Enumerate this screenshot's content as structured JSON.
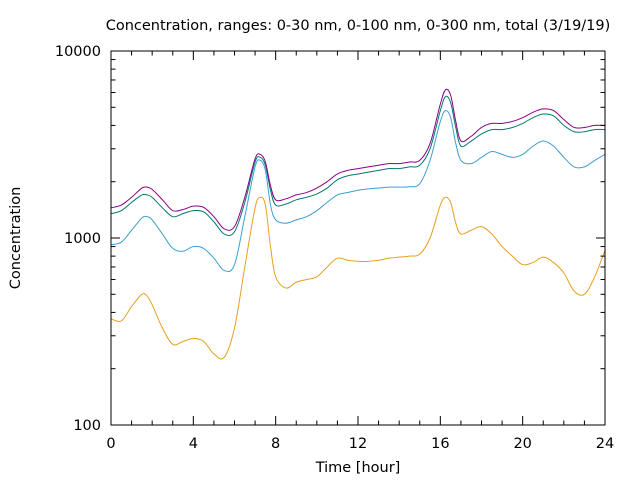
{
  "chart_data": {
    "type": "line",
    "title": "Concentration, ranges: 0-30 nm, 0-100 nm, 0-300 nm, total (3/19/19)",
    "xlabel": "Time [hour]",
    "ylabel": "Concentration",
    "xlim": [
      0,
      24
    ],
    "ylim": [
      100,
      10000
    ],
    "yscale": "log",
    "grid": false,
    "x_ticks": [
      0,
      4,
      8,
      12,
      16,
      20,
      24
    ],
    "x_tick_labels": [
      "0",
      "4",
      "8",
      "12",
      "16",
      "20",
      "24"
    ],
    "y_ticks": [
      100,
      1000,
      10000
    ],
    "y_tick_labels": [
      "100",
      "1000",
      "10000"
    ],
    "x": [
      0,
      0.5,
      1,
      1.5,
      1.75,
      2,
      2.5,
      3,
      3.5,
      4,
      4.5,
      5,
      5.5,
      6,
      6.5,
      7,
      7.25,
      7.5,
      7.75,
      8,
      8.5,
      9,
      9.5,
      10,
      10.5,
      11,
      11.5,
      12,
      12.5,
      13,
      13.5,
      14,
      14.5,
      15,
      15.5,
      16,
      16.25,
      16.5,
      16.75,
      17,
      17.5,
      18,
      18.5,
      19,
      19.5,
      20,
      20.5,
      21,
      21.5,
      22,
      22.5,
      23,
      23.5,
      24
    ],
    "series": [
      {
        "color": "#e6a020",
        "values": [
          370,
          360,
          430,
          500,
          490,
          440,
          330,
          270,
          280,
          290,
          280,
          240,
          230,
          330,
          700,
          1450,
          1650,
          1500,
          900,
          620,
          540,
          580,
          600,
          620,
          700,
          780,
          760,
          750,
          750,
          760,
          780,
          790,
          800,
          820,
          1000,
          1500,
          1650,
          1550,
          1200,
          1050,
          1100,
          1150,
          1050,
          900,
          800,
          720,
          740,
          790,
          740,
          650,
          520,
          500,
          620,
          860
        ]
      },
      {
        "color": "#3ca0d0",
        "values": [
          920,
          950,
          1100,
          1280,
          1300,
          1250,
          1050,
          880,
          850,
          900,
          880,
          780,
          670,
          720,
          1300,
          2400,
          2600,
          2300,
          1500,
          1250,
          1200,
          1250,
          1300,
          1400,
          1550,
          1700,
          1750,
          1800,
          1830,
          1850,
          1870,
          1870,
          1880,
          1950,
          2600,
          4200,
          4800,
          4400,
          3200,
          2600,
          2500,
          2700,
          2900,
          2800,
          2700,
          2800,
          3100,
          3300,
          3100,
          2700,
          2400,
          2400,
          2600,
          2800
        ]
      },
      {
        "color": "#007a6a",
        "values": [
          1350,
          1400,
          1550,
          1700,
          1700,
          1650,
          1450,
          1300,
          1350,
          1400,
          1380,
          1220,
          1050,
          1080,
          1550,
          2550,
          2700,
          2450,
          1800,
          1500,
          1520,
          1600,
          1650,
          1720,
          1850,
          2050,
          2150,
          2200,
          2250,
          2300,
          2350,
          2350,
          2400,
          2450,
          3000,
          4800,
          5700,
          5300,
          3900,
          3100,
          3300,
          3600,
          3800,
          3800,
          3900,
          4100,
          4400,
          4600,
          4500,
          4000,
          3700,
          3700,
          3800,
          3800
        ]
      },
      {
        "color": "#8a008a",
        "values": [
          1450,
          1500,
          1650,
          1850,
          1870,
          1820,
          1600,
          1400,
          1420,
          1480,
          1460,
          1300,
          1120,
          1150,
          1650,
          2650,
          2800,
          2550,
          1900,
          1600,
          1620,
          1700,
          1750,
          1850,
          2000,
          2200,
          2300,
          2350,
          2400,
          2450,
          2500,
          2500,
          2550,
          2600,
          3200,
          5200,
          6200,
          5800,
          4200,
          3300,
          3500,
          3900,
          4100,
          4100,
          4200,
          4400,
          4700,
          4900,
          4800,
          4300,
          3900,
          3900,
          4000,
          4000
        ]
      }
    ]
  }
}
